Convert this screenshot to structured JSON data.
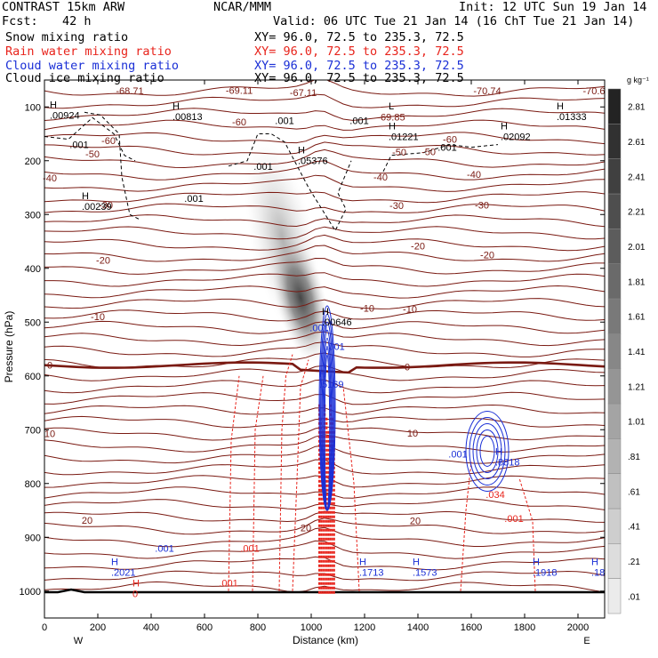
{
  "header": {
    "model": "CONTRAST 15km ARW",
    "org": "NCAR/MMM",
    "init": "Init: 12 UTC Sun 19 Jan 14",
    "fcst_label": "Fcst:",
    "fcst_value": "42 h",
    "valid": "Valid: 06 UTC Tue 21 Jan 14 (16 ChT Tue 21 Jan 14)"
  },
  "legend": [
    {
      "name": "Snow mixing ratio",
      "color": "#000000",
      "xy": "XY=  96.0, 72.5 to 235.3, 72.5"
    },
    {
      "name": "Rain water mixing ratio",
      "color": "#e8241c",
      "xy": "XY=  96.0, 72.5 to 235.3, 72.5"
    },
    {
      "name": "Cloud water mixing ratio",
      "color": "#1a2fd6",
      "xy": "XY=  96.0, 72.5 to 235.3, 72.5"
    },
    {
      "name": "Cloud ice mixing ratio",
      "color": "#000000",
      "xy": "XY=  96.0, 72.5 to 235.3, 72.5"
    }
  ],
  "colorbar": {
    "unit": "g kg⁻¹",
    "labels": [
      ".01",
      ".21",
      ".41",
      ".61",
      ".81",
      "1.01",
      "1.21",
      "1.41",
      "1.61",
      "1.81",
      "2.01",
      "2.21",
      "2.41",
      "2.61",
      "2.81"
    ]
  },
  "chart_data": {
    "type": "contour cross-section",
    "xlabel": "Distance (km)",
    "ylabel": "Pressure (hPa)",
    "xlim": [
      0,
      2100
    ],
    "ylim": [
      1050,
      50
    ],
    "xticks": [
      0,
      200,
      400,
      600,
      800,
      1000,
      1200,
      1400,
      1600,
      1800,
      2000
    ],
    "yticks": [
      100,
      200,
      300,
      400,
      500,
      600,
      700,
      800,
      900,
      1000
    ],
    "x_end_labels": {
      "left": "W",
      "right": "E"
    },
    "temperature_contour_labels": [
      {
        "x": 320,
        "p": 70,
        "text": "-68.71"
      },
      {
        "x": 730,
        "p": 69,
        "text": "-69.11"
      },
      {
        "x": 970,
        "p": 73,
        "text": "-67.11"
      },
      {
        "x": 1660,
        "p": 70,
        "text": "-70.74"
      },
      {
        "x": 2060,
        "p": 70,
        "text": "-70.6"
      },
      {
        "x": 1300,
        "p": 119,
        "text": "-69.85"
      },
      {
        "x": 730,
        "p": 128,
        "text": "-60"
      },
      {
        "x": 240,
        "p": 162,
        "text": "-60"
      },
      {
        "x": 1520,
        "p": 160,
        "text": "-60"
      },
      {
        "x": 180,
        "p": 187,
        "text": "-50"
      },
      {
        "x": 1330,
        "p": 184,
        "text": "-50"
      },
      {
        "x": 1440,
        "p": 183,
        "text": "-50"
      },
      {
        "x": 20,
        "p": 232,
        "text": "-40"
      },
      {
        "x": 1260,
        "p": 230,
        "text": "-40"
      },
      {
        "x": 1610,
        "p": 225,
        "text": "-40"
      },
      {
        "x": 230,
        "p": 282,
        "text": "-30"
      },
      {
        "x": 1320,
        "p": 283,
        "text": "-30"
      },
      {
        "x": 1640,
        "p": 282,
        "text": "-30"
      },
      {
        "x": 220,
        "p": 385,
        "text": "-20"
      },
      {
        "x": 1400,
        "p": 358,
        "text": "-20"
      },
      {
        "x": 1660,
        "p": 375,
        "text": "-20"
      },
      {
        "x": 200,
        "p": 490,
        "text": "-10"
      },
      {
        "x": 1210,
        "p": 474,
        "text": "-10"
      },
      {
        "x": 1370,
        "p": 476,
        "text": "-10"
      },
      {
        "x": 20,
        "p": 580,
        "text": "0"
      },
      {
        "x": 1360,
        "p": 583,
        "text": "0"
      },
      {
        "x": 20,
        "p": 707,
        "text": "10"
      },
      {
        "x": 1380,
        "p": 706,
        "text": "10"
      },
      {
        "x": 160,
        "p": 868,
        "text": "20"
      },
      {
        "x": 1390,
        "p": 869,
        "text": "20"
      },
      {
        "x": 980,
        "p": 882,
        "text": "20"
      }
    ],
    "extrema": [
      {
        "x": 20,
        "p": 105,
        "kind": "H",
        "value": ".00924"
      },
      {
        "x": 480,
        "p": 108,
        "kind": "H",
        "value": ".00813"
      },
      {
        "x": 140,
        "p": 275,
        "kind": "H",
        "value": ".00239"
      },
      {
        "x": 950,
        "p": 190,
        "kind": "H",
        "value": ".05376"
      },
      {
        "x": 1290,
        "p": 108,
        "kind": "L",
        "value": ""
      },
      {
        "x": 1290,
        "p": 145,
        "kind": "H",
        "value": ".01221"
      },
      {
        "x": 1710,
        "p": 145,
        "kind": "H",
        "value": ".02092"
      },
      {
        "x": 1920,
        "p": 108,
        "kind": "H",
        "value": ".01333"
      },
      {
        "x": 1040,
        "p": 490,
        "kind": "H",
        "value": ".00646"
      },
      {
        "x": 1030,
        "p": 605,
        "kind": "H",
        "value": ".5169"
      },
      {
        "x": 1690,
        "p": 750,
        "kind": "H",
        "value": ".8818"
      },
      {
        "x": 250,
        "p": 955,
        "kind": "H",
        "value": ".2021"
      },
      {
        "x": 1180,
        "p": 955,
        "kind": "H",
        "value": ".1713"
      },
      {
        "x": 1380,
        "p": 955,
        "kind": "H",
        "value": ".1573"
      },
      {
        "x": 1830,
        "p": 955,
        "kind": "H",
        "value": ".1918"
      },
      {
        "x": 2050,
        "p": 955,
        "kind": "H",
        "value": ".18"
      },
      {
        "x": 330,
        "p": 995,
        "kind": "H",
        "value": "0"
      }
    ],
    "small_labels": [
      {
        "x": 900,
        "p": 125,
        "text": ".001",
        "color": "#000000"
      },
      {
        "x": 130,
        "p": 170,
        "text": ".001",
        "color": "#000000"
      },
      {
        "x": 820,
        "p": 210,
        "text": ".001",
        "color": "#000000"
      },
      {
        "x": 560,
        "p": 270,
        "text": ".001",
        "color": "#000000"
      },
      {
        "x": 1180,
        "p": 125,
        "text": ".001",
        "color": "#000000"
      },
      {
        "x": 1510,
        "p": 175,
        "text": ".001",
        "color": "#000000"
      },
      {
        "x": 1030,
        "p": 510,
        "text": ".001",
        "color": "#1a2fd6"
      },
      {
        "x": 1090,
        "p": 545,
        "text": ".001",
        "color": "#1a2fd6"
      },
      {
        "x": 1550,
        "p": 745,
        "text": ".001",
        "color": "#1a2fd6"
      },
      {
        "x": 450,
        "p": 920,
        "text": ".001",
        "color": "#1a2fd6"
      },
      {
        "x": 1690,
        "p": 820,
        "text": ".034",
        "color": "#e8241c"
      },
      {
        "x": 1760,
        "p": 865,
        "text": ".001",
        "color": "#e8241c"
      },
      {
        "x": 770,
        "p": 920,
        "text": ".001",
        "color": "#e8241c"
      },
      {
        "x": 690,
        "p": 985,
        "text": ".001",
        "color": "#e8241c"
      }
    ],
    "shading_colorbar_range": [
      0.01,
      2.81
    ]
  }
}
